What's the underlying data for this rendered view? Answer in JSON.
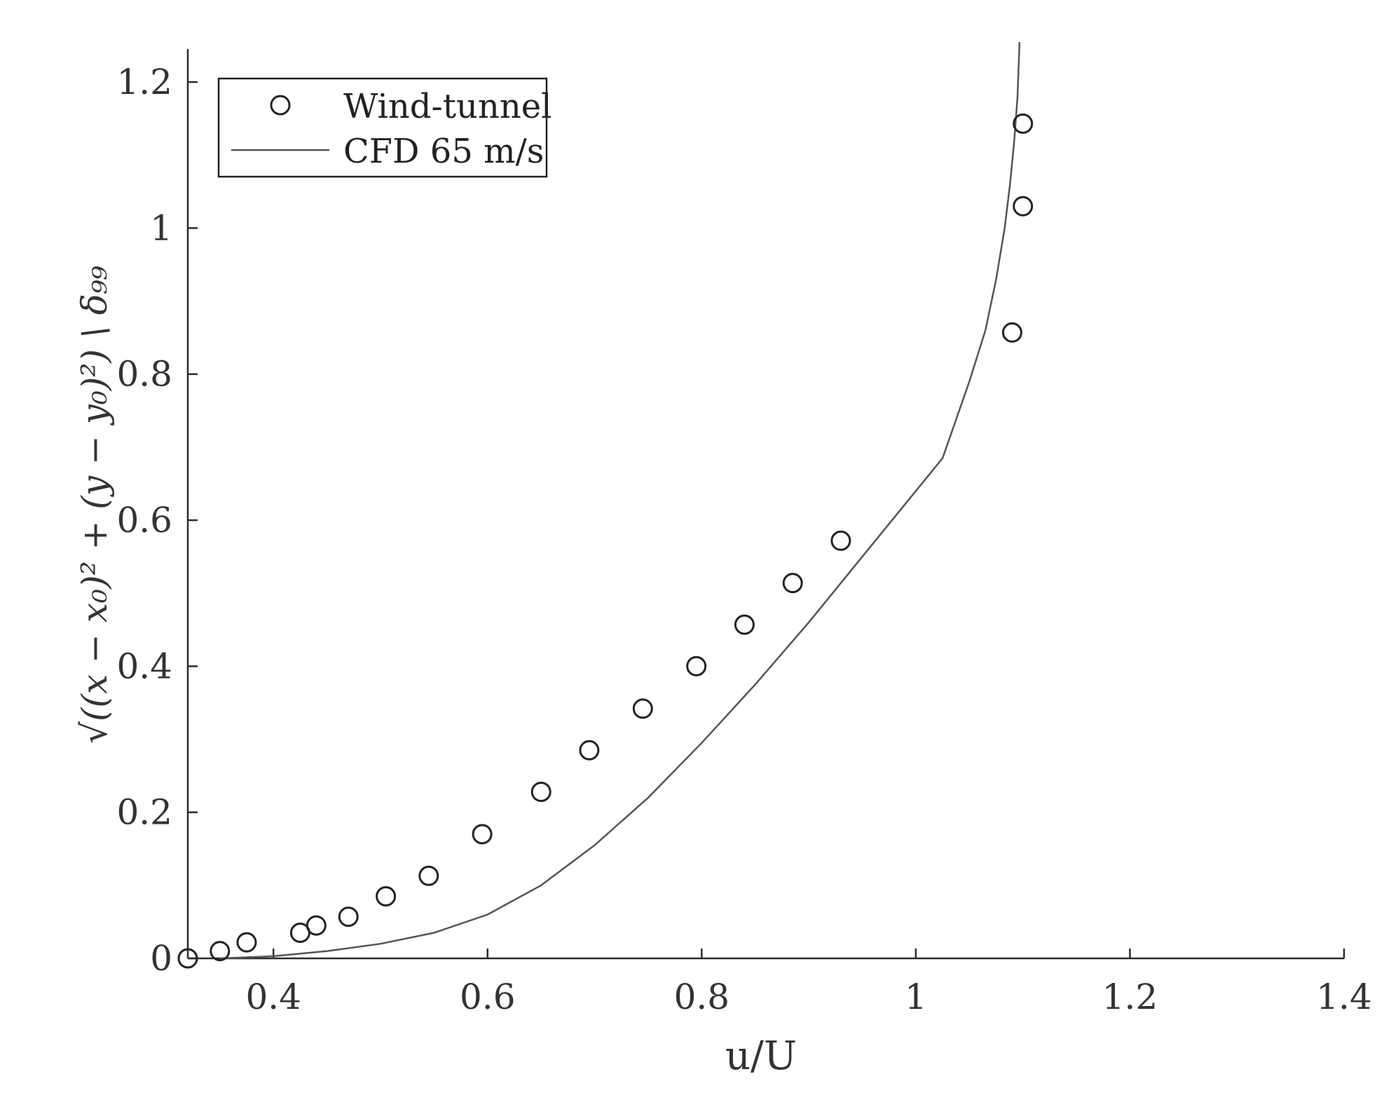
{
  "chart_data": {
    "type": "scatter",
    "title": "",
    "xlabel": "u/U",
    "ylabel": "√((x − x₀)² + (y − y₀)²) \\ δ₉₉",
    "xlim": [
      0.32,
      1.4
    ],
    "ylim": [
      0,
      1.25
    ],
    "xticks": [
      "0.4",
      "0.6",
      "0.8",
      "1",
      "1.2",
      "1.4"
    ],
    "yticks": [
      "0",
      "0.2",
      "0.4",
      "0.6",
      "0.8",
      "1",
      "1.2"
    ],
    "grid": false,
    "legend_position": "top-left",
    "series": [
      {
        "name": "Wind-tunnel",
        "kind": "markers",
        "marker": "circle",
        "color": "#222222",
        "x": [
          0.32,
          0.35,
          0.375,
          0.425,
          0.44,
          0.47,
          0.505,
          0.545,
          0.595,
          0.65,
          0.695,
          0.745,
          0.795,
          0.84,
          0.885,
          0.93,
          1.09,
          1.1,
          1.1
        ],
        "y": [
          0.0,
          0.01,
          0.022,
          0.035,
          0.045,
          0.057,
          0.085,
          0.113,
          0.17,
          0.228,
          0.285,
          0.342,
          0.4,
          0.457,
          0.514,
          0.572,
          0.857,
          1.03,
          1.143
        ]
      },
      {
        "name": "CFD 65 m/s",
        "kind": "line",
        "color": "#555555",
        "x": [
          0.35,
          0.4,
          0.45,
          0.5,
          0.55,
          0.6,
          0.65,
          0.7,
          0.75,
          0.8,
          0.85,
          0.9,
          0.95,
          1.0,
          1.025,
          1.05,
          1.065,
          1.075,
          1.083,
          1.088,
          1.092,
          1.095,
          1.097
        ],
        "y": [
          0.0,
          0.003,
          0.01,
          0.02,
          0.035,
          0.06,
          0.1,
          0.155,
          0.22,
          0.295,
          0.375,
          0.46,
          0.55,
          0.64,
          0.685,
          0.79,
          0.86,
          0.93,
          1.0,
          1.06,
          1.12,
          1.18,
          1.26
        ]
      }
    ]
  }
}
